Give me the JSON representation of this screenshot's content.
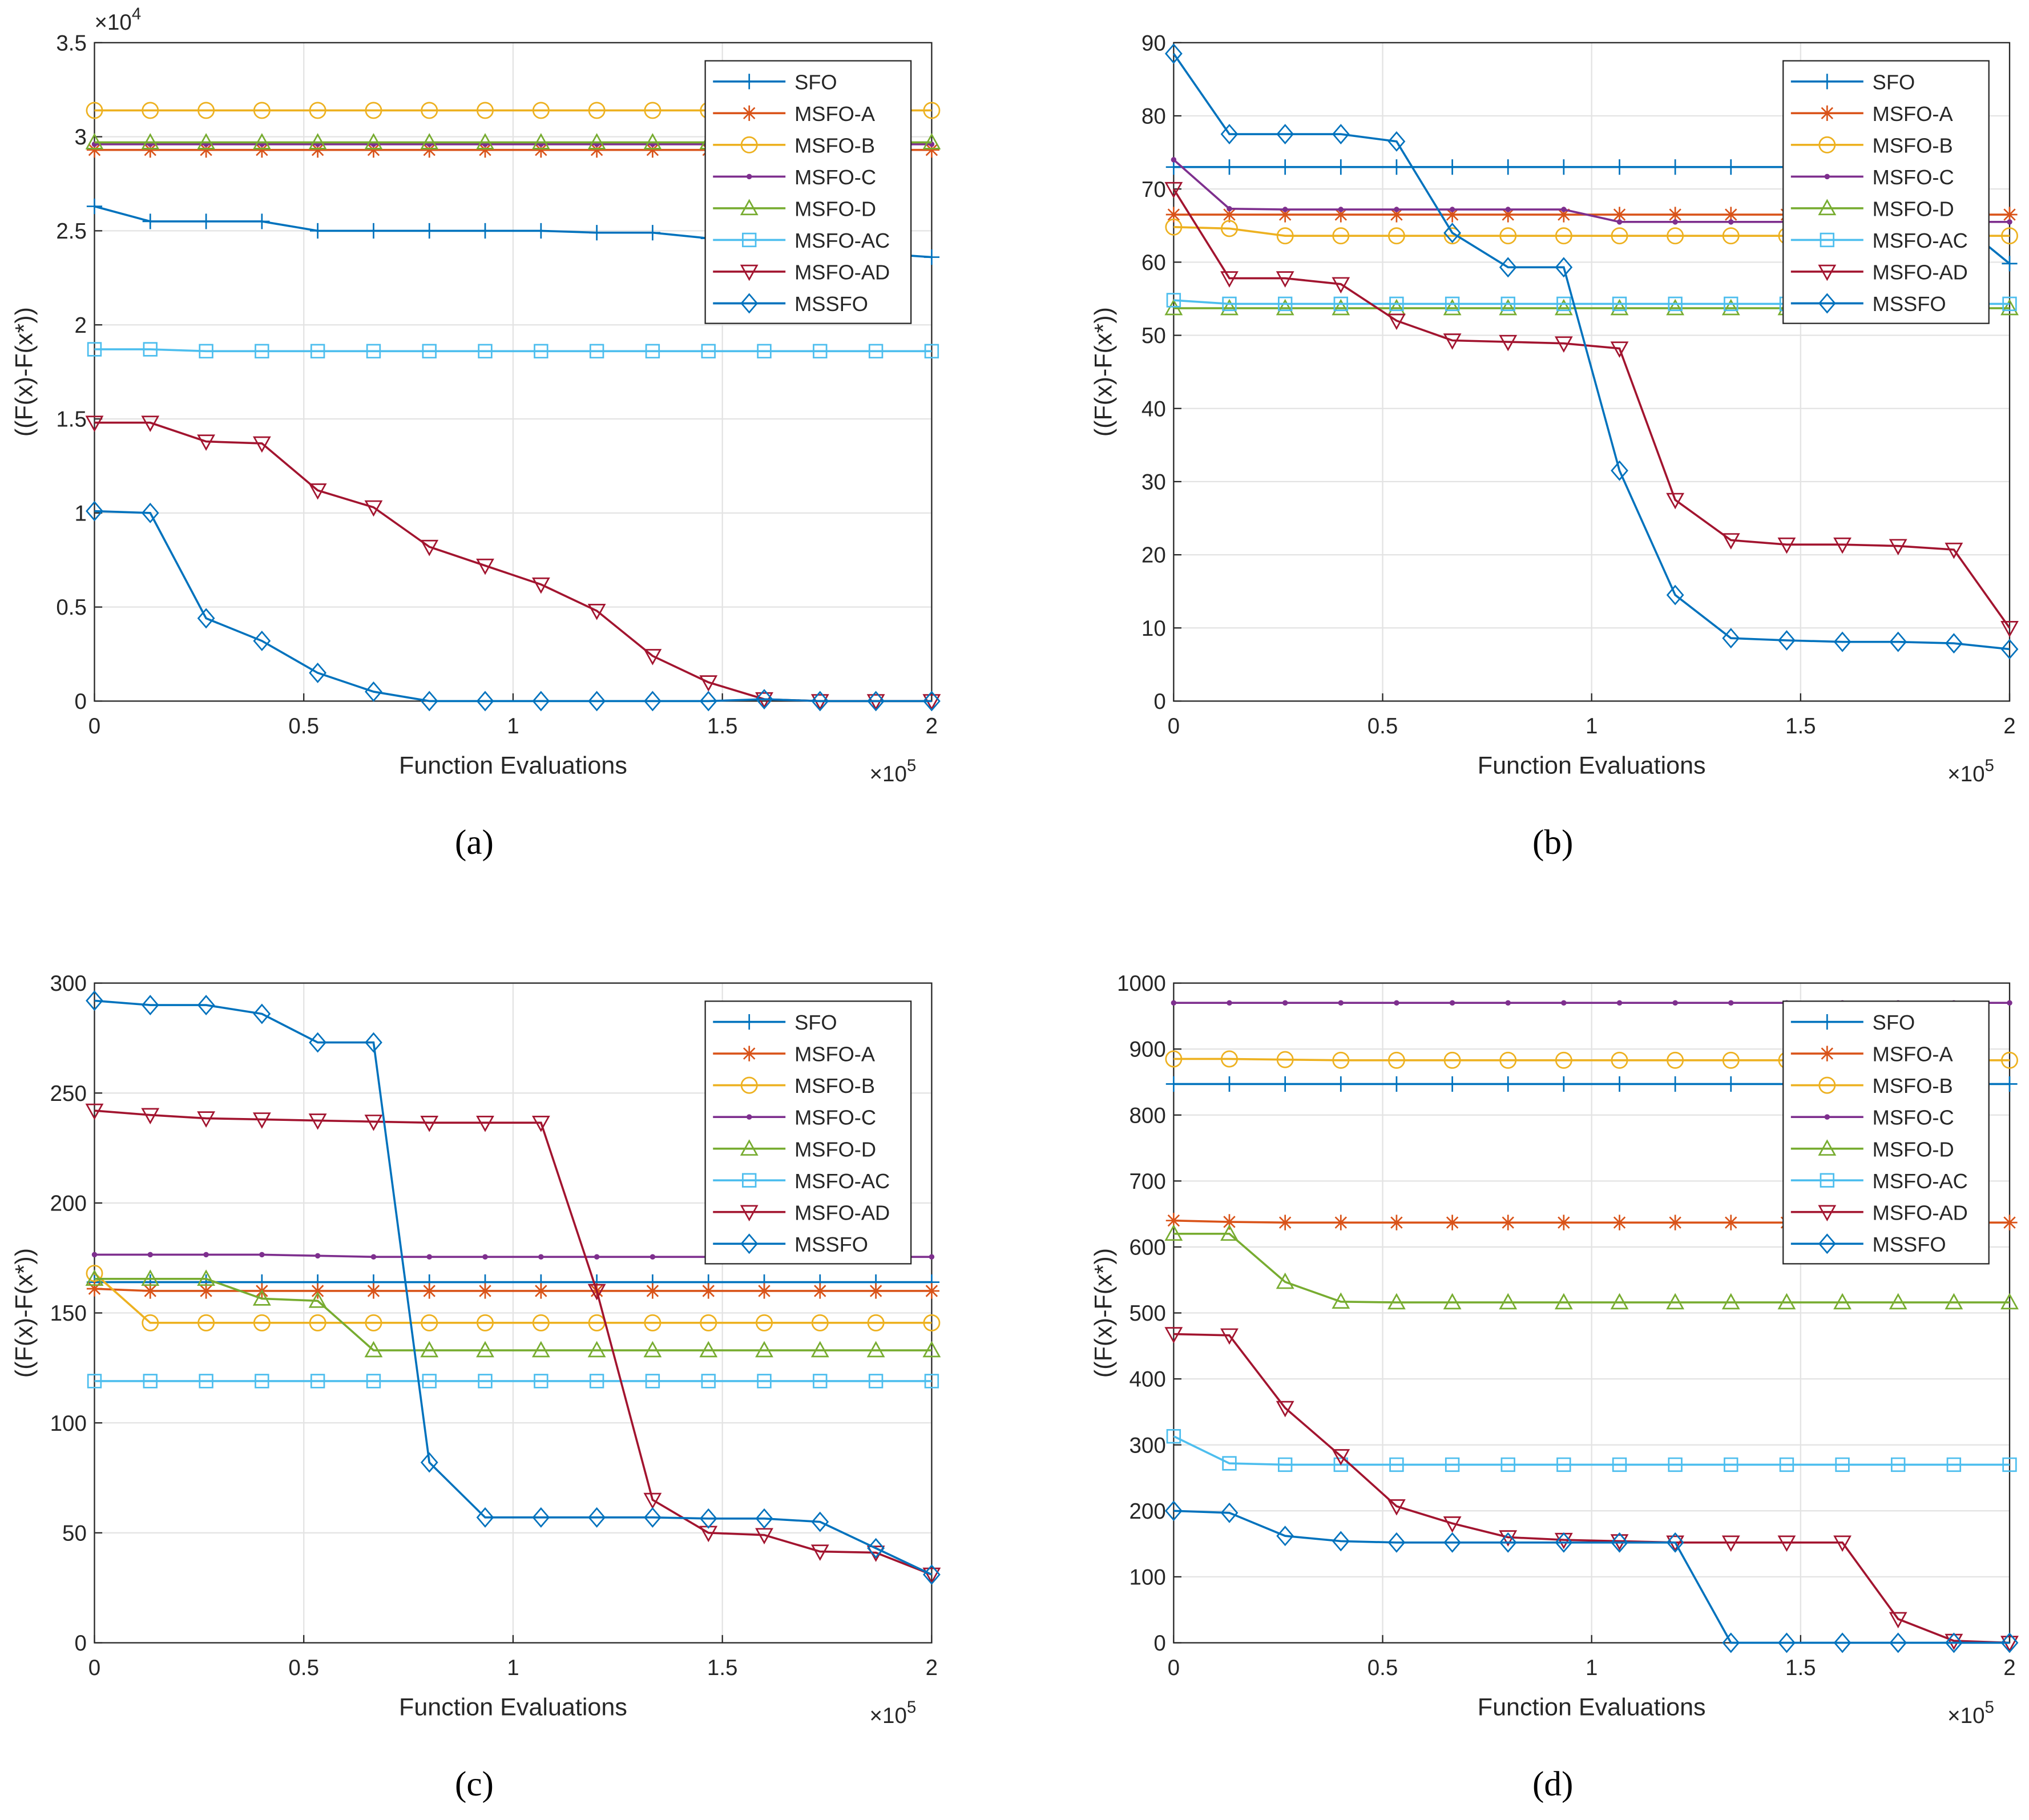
{
  "chart_data": [
    {
      "type": "line",
      "caption": "(a)",
      "xlabel": "Function Evaluations",
      "ylabel": "((F(x)-F(x*))",
      "x_exponent": {
        "base": "×10",
        "power": "5"
      },
      "y_exponent": {
        "base": "×10",
        "power": "4"
      },
      "x": [
        0,
        0.1333,
        0.2667,
        0.4,
        0.5333,
        0.6667,
        0.8,
        0.9333,
        1.0667,
        1.2,
        1.3333,
        1.4667,
        1.6,
        1.7333,
        1.8667,
        2
      ],
      "xlim": [
        0,
        2
      ],
      "xticks": [
        0,
        0.5,
        1,
        1.5,
        2
      ],
      "ylim": [
        0,
        3.5
      ],
      "yticks": [
        0,
        0.5,
        1,
        1.5,
        2,
        2.5,
        3,
        3.5
      ],
      "grid": true,
      "legend": "northeast",
      "series": [
        {
          "name": "SFO",
          "color": "#0072bd",
          "marker": "+",
          "values": [
            2.63,
            2.55,
            2.55,
            2.55,
            2.5,
            2.5,
            2.5,
            2.5,
            2.5,
            2.49,
            2.49,
            2.46,
            2.44,
            2.42,
            2.38,
            2.36
          ]
        },
        {
          "name": "MSFO-A",
          "color": "#d95319",
          "marker": "*",
          "values": [
            2.93,
            2.93,
            2.93,
            2.93,
            2.93,
            2.93,
            2.93,
            2.93,
            2.93,
            2.93,
            2.93,
            2.93,
            2.93,
            2.93,
            2.93,
            2.93
          ]
        },
        {
          "name": "MSFO-B",
          "color": "#edb120",
          "marker": "o",
          "values": [
            3.14,
            3.14,
            3.14,
            3.14,
            3.14,
            3.14,
            3.14,
            3.14,
            3.14,
            3.14,
            3.14,
            3.14,
            3.14,
            3.14,
            3.14,
            3.14
          ]
        },
        {
          "name": "MSFO-C",
          "color": "#7e2f8e",
          "marker": ".",
          "values": [
            2.96,
            2.96,
            2.96,
            2.96,
            2.96,
            2.96,
            2.96,
            2.96,
            2.96,
            2.96,
            2.96,
            2.96,
            2.96,
            2.96,
            2.96,
            2.96
          ]
        },
        {
          "name": "MSFO-D",
          "color": "#77ac30",
          "marker": "^",
          "values": [
            2.97,
            2.97,
            2.97,
            2.97,
            2.97,
            2.97,
            2.97,
            2.97,
            2.97,
            2.97,
            2.97,
            2.97,
            2.97,
            2.97,
            2.97,
            2.97
          ]
        },
        {
          "name": "MSFO-AC",
          "color": "#4dbeee",
          "marker": "s",
          "values": [
            1.87,
            1.87,
            1.86,
            1.86,
            1.86,
            1.86,
            1.86,
            1.86,
            1.86,
            1.86,
            1.86,
            1.86,
            1.86,
            1.86,
            1.86,
            1.86
          ]
        },
        {
          "name": "MSFO-AD",
          "color": "#a2142f",
          "marker": "v",
          "values": [
            1.48,
            1.48,
            1.38,
            1.37,
            1.12,
            1.03,
            0.82,
            0.72,
            0.62,
            0.48,
            0.24,
            0.1,
            0.01,
            0,
            0,
            0
          ]
        },
        {
          "name": "MSSFO",
          "color": "#0072bd",
          "marker": "d",
          "values": [
            1.01,
            1.0,
            0.44,
            0.32,
            0.15,
            0.05,
            0,
            0,
            0,
            0,
            0,
            0,
            0.01,
            0,
            0,
            0
          ]
        }
      ]
    },
    {
      "type": "line",
      "caption": "(b)",
      "xlabel": "Function Evaluations",
      "ylabel": "((F(x)-F(x*))",
      "x_exponent": {
        "base": "×10",
        "power": "5"
      },
      "x": [
        0,
        0.1333,
        0.2667,
        0.4,
        0.5333,
        0.6667,
        0.8,
        0.9333,
        1.0667,
        1.2,
        1.3333,
        1.4667,
        1.6,
        1.7333,
        1.8667,
        2
      ],
      "xlim": [
        0,
        2
      ],
      "xticks": [
        0,
        0.5,
        1,
        1.5,
        2
      ],
      "ylim": [
        0,
        90
      ],
      "yticks": [
        0,
        10,
        20,
        30,
        40,
        50,
        60,
        70,
        80,
        90
      ],
      "grid": true,
      "legend": "northeast",
      "series": [
        {
          "name": "SFO",
          "color": "#0072bd",
          "marker": "+",
          "values": [
            73,
            73,
            73,
            73,
            73,
            73,
            73,
            73,
            73,
            73,
            73,
            73,
            73,
            73,
            66,
            59.8
          ]
        },
        {
          "name": "MSFO-A",
          "color": "#d95319",
          "marker": "*",
          "values": [
            66.5,
            66.5,
            66.5,
            66.5,
            66.5,
            66.5,
            66.5,
            66.5,
            66.5,
            66.5,
            66.5,
            66.5,
            66.5,
            66.5,
            66.5,
            66.5
          ]
        },
        {
          "name": "MSFO-B",
          "color": "#edb120",
          "marker": "o",
          "values": [
            64.8,
            64.6,
            63.6,
            63.6,
            63.6,
            63.6,
            63.6,
            63.6,
            63.6,
            63.6,
            63.6,
            63.6,
            63.6,
            63.6,
            63.6,
            63.6
          ]
        },
        {
          "name": "MSFO-C",
          "color": "#7e2f8e",
          "marker": ".",
          "values": [
            74,
            67.3,
            67.2,
            67.2,
            67.2,
            67.2,
            67.2,
            67.2,
            65.5,
            65.5,
            65.5,
            65.5,
            65.5,
            65.5,
            65.5,
            65.5
          ]
        },
        {
          "name": "MSFO-D",
          "color": "#77ac30",
          "marker": "^",
          "values": [
            53.7,
            53.7,
            53.7,
            53.7,
            53.7,
            53.7,
            53.7,
            53.7,
            53.7,
            53.7,
            53.7,
            53.7,
            53.7,
            53.7,
            53.7,
            53.7
          ]
        },
        {
          "name": "MSFO-AC",
          "color": "#4dbeee",
          "marker": "s",
          "values": [
            54.8,
            54.3,
            54.3,
            54.3,
            54.3,
            54.3,
            54.3,
            54.3,
            54.3,
            54.3,
            54.3,
            54.3,
            54.3,
            54.3,
            54.3,
            54.3
          ]
        },
        {
          "name": "MSFO-AD",
          "color": "#a2142f",
          "marker": "v",
          "values": [
            70,
            57.8,
            57.8,
            57,
            52,
            49.3,
            49.1,
            48.9,
            48.2,
            27.5,
            22,
            21.4,
            21.4,
            21.2,
            20.7,
            10
          ]
        },
        {
          "name": "MSSFO",
          "color": "#0072bd",
          "marker": "d",
          "values": [
            88.5,
            77.5,
            77.5,
            77.5,
            76.5,
            64,
            59.3,
            59.3,
            31.5,
            14.5,
            8.6,
            8.3,
            8.1,
            8.1,
            7.9,
            7.1
          ]
        }
      ]
    },
    {
      "type": "line",
      "caption": "(c)",
      "xlabel": "Function Evaluations",
      "ylabel": "((F(x)-F(x*))",
      "x_exponent": {
        "base": "×10",
        "power": "5"
      },
      "x": [
        0,
        0.1333,
        0.2667,
        0.4,
        0.5333,
        0.6667,
        0.8,
        0.9333,
        1.0667,
        1.2,
        1.3333,
        1.4667,
        1.6,
        1.7333,
        1.8667,
        2
      ],
      "xlim": [
        0,
        2
      ],
      "xticks": [
        0,
        0.5,
        1,
        1.5,
        2
      ],
      "ylim": [
        0,
        300
      ],
      "yticks": [
        0,
        50,
        100,
        150,
        200,
        250,
        300
      ],
      "grid": true,
      "legend": "northeast",
      "series": [
        {
          "name": "SFO",
          "color": "#0072bd",
          "marker": "+",
          "values": [
            164,
            164,
            164,
            164,
            164,
            164,
            164,
            164,
            164,
            164,
            164,
            164,
            164,
            164,
            164,
            164
          ]
        },
        {
          "name": "MSFO-A",
          "color": "#d95319",
          "marker": "*",
          "values": [
            161,
            160,
            160,
            160,
            160,
            160,
            160,
            160,
            160,
            160,
            160,
            160,
            160,
            160,
            160,
            160
          ]
        },
        {
          "name": "MSFO-B",
          "color": "#edb120",
          "marker": "o",
          "values": [
            168,
            145.5,
            145.5,
            145.5,
            145.5,
            145.5,
            145.5,
            145.5,
            145.5,
            145.5,
            145.5,
            145.5,
            145.5,
            145.5,
            145.5,
            145.5
          ]
        },
        {
          "name": "MSFO-C",
          "color": "#7e2f8e",
          "marker": ".",
          "values": [
            176.5,
            176.5,
            176.5,
            176.5,
            176,
            175.5,
            175.5,
            175.5,
            175.5,
            175.5,
            175.5,
            175.5,
            175.5,
            175.5,
            175.5,
            175.5
          ]
        },
        {
          "name": "MSFO-D",
          "color": "#77ac30",
          "marker": "^",
          "values": [
            165.5,
            165.5,
            165.5,
            156.5,
            155.5,
            133,
            133,
            133,
            133,
            133,
            133,
            133,
            133,
            133,
            133,
            133
          ]
        },
        {
          "name": "MSFO-AC",
          "color": "#4dbeee",
          "marker": "s",
          "values": [
            119,
            119,
            119,
            119,
            119,
            119,
            119,
            119,
            119,
            119,
            119,
            119,
            119,
            119,
            119,
            119
          ]
        },
        {
          "name": "MSFO-AD",
          "color": "#a2142f",
          "marker": "v",
          "values": [
            242,
            240,
            238.5,
            238,
            237.5,
            237,
            236.5,
            236.5,
            236.5,
            160,
            65,
            50,
            49,
            41.5,
            41,
            31
          ]
        },
        {
          "name": "MSSFO",
          "color": "#0072bd",
          "marker": "d",
          "values": [
            292,
            290,
            290,
            286,
            273,
            273,
            82,
            57,
            57,
            57,
            57,
            56.5,
            56.5,
            55,
            43,
            31
          ]
        }
      ]
    },
    {
      "type": "line",
      "caption": "(d)",
      "xlabel": "Function Evaluations",
      "ylabel": "((F(x)-F(x*))",
      "x_exponent": {
        "base": "×10",
        "power": "5"
      },
      "x": [
        0,
        0.1333,
        0.2667,
        0.4,
        0.5333,
        0.6667,
        0.8,
        0.9333,
        1.0667,
        1.2,
        1.3333,
        1.4667,
        1.6,
        1.7333,
        1.8667,
        2
      ],
      "xlim": [
        0,
        2
      ],
      "xticks": [
        0,
        0.5,
        1,
        1.5,
        2
      ],
      "ylim": [
        0,
        1000
      ],
      "yticks": [
        0,
        100,
        200,
        300,
        400,
        500,
        600,
        700,
        800,
        900,
        1000
      ],
      "grid": true,
      "legend": "northeast",
      "series": [
        {
          "name": "SFO",
          "color": "#0072bd",
          "marker": "+",
          "values": [
            847,
            847,
            847,
            847,
            847,
            847,
            847,
            847,
            847,
            847,
            847,
            847,
            847,
            847,
            847,
            847
          ]
        },
        {
          "name": "MSFO-A",
          "color": "#d95319",
          "marker": "*",
          "values": [
            640,
            638,
            637,
            637,
            637,
            637,
            637,
            637,
            637,
            637,
            637,
            637,
            637,
            637,
            637,
            637
          ]
        },
        {
          "name": "MSFO-B",
          "color": "#edb120",
          "marker": "o",
          "values": [
            885,
            885,
            884,
            883,
            883,
            883,
            883,
            883,
            883,
            883,
            883,
            883,
            883,
            883,
            883,
            883
          ]
        },
        {
          "name": "MSFO-C",
          "color": "#7e2f8e",
          "marker": ".",
          "values": [
            970,
            970,
            970,
            970,
            970,
            970,
            970,
            970,
            970,
            970,
            970,
            970,
            970,
            970,
            970,
            970
          ]
        },
        {
          "name": "MSFO-D",
          "color": "#77ac30",
          "marker": "^",
          "values": [
            620,
            620,
            547,
            517,
            516,
            516,
            516,
            516,
            516,
            516,
            516,
            516,
            516,
            516,
            516,
            516
          ]
        },
        {
          "name": "MSFO-AC",
          "color": "#4dbeee",
          "marker": "s",
          "values": [
            313,
            272,
            270,
            270,
            270,
            270,
            270,
            270,
            270,
            270,
            270,
            270,
            270,
            270,
            270,
            270
          ]
        },
        {
          "name": "MSFO-AD",
          "color": "#a2142f",
          "marker": "v",
          "values": [
            468,
            466,
            356,
            283,
            207,
            181,
            160,
            156,
            154,
            152,
            152,
            152,
            152,
            36,
            3,
            0
          ]
        },
        {
          "name": "MSSFO",
          "color": "#0072bd",
          "marker": "d",
          "values": [
            200,
            197,
            162,
            154,
            152,
            152,
            152,
            152,
            152,
            152,
            0,
            0,
            0,
            0,
            0,
            0
          ]
        }
      ]
    }
  ]
}
